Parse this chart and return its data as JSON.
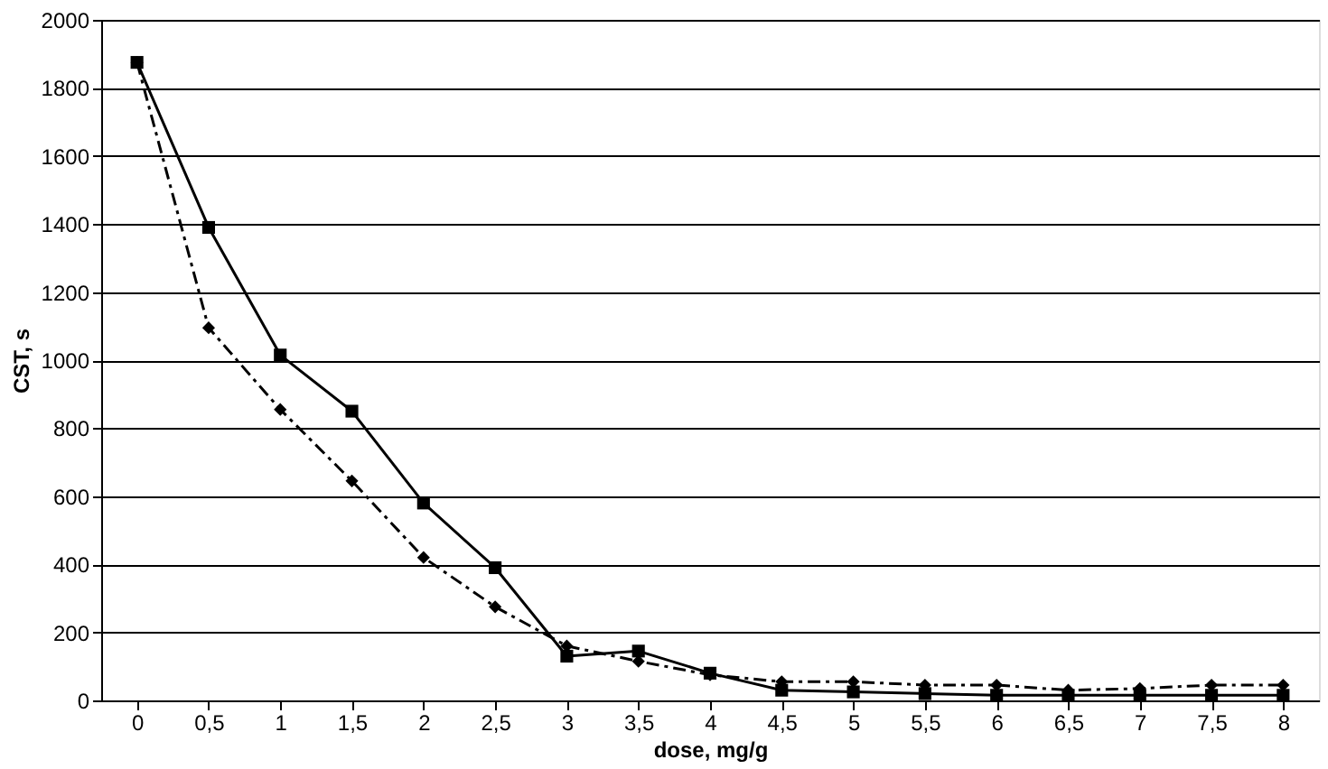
{
  "chart_data": {
    "type": "line",
    "xlabel": "dose, mg/g",
    "ylabel": "CST, s",
    "categories": [
      "0",
      "0,5",
      "1",
      "1,5",
      "2",
      "2,5",
      "3",
      "3,5",
      "4",
      "4,5",
      "5",
      "5,5",
      "6",
      "6,5",
      "7",
      "7,5",
      "8"
    ],
    "series": [
      {
        "color": "#000000",
        "marker": "diamond",
        "line_style": "dashed",
        "values": [
          1875,
          1095,
          855,
          645,
          420,
          275,
          160,
          115,
          75,
          55,
          55,
          45,
          45,
          30,
          35,
          45,
          45
        ]
      },
      {
        "color": "#000000",
        "marker": "square",
        "line_style": "solid",
        "values": [
          1875,
          1390,
          1015,
          850,
          580,
          390,
          130,
          145,
          80,
          30,
          25,
          20,
          15,
          15,
          15,
          15,
          15
        ]
      }
    ],
    "ylim": [
      0,
      2000
    ],
    "yticks": [
      0,
      200,
      400,
      600,
      800,
      1000,
      1200,
      1400,
      1600,
      1800,
      2000
    ],
    "grid": "y"
  }
}
